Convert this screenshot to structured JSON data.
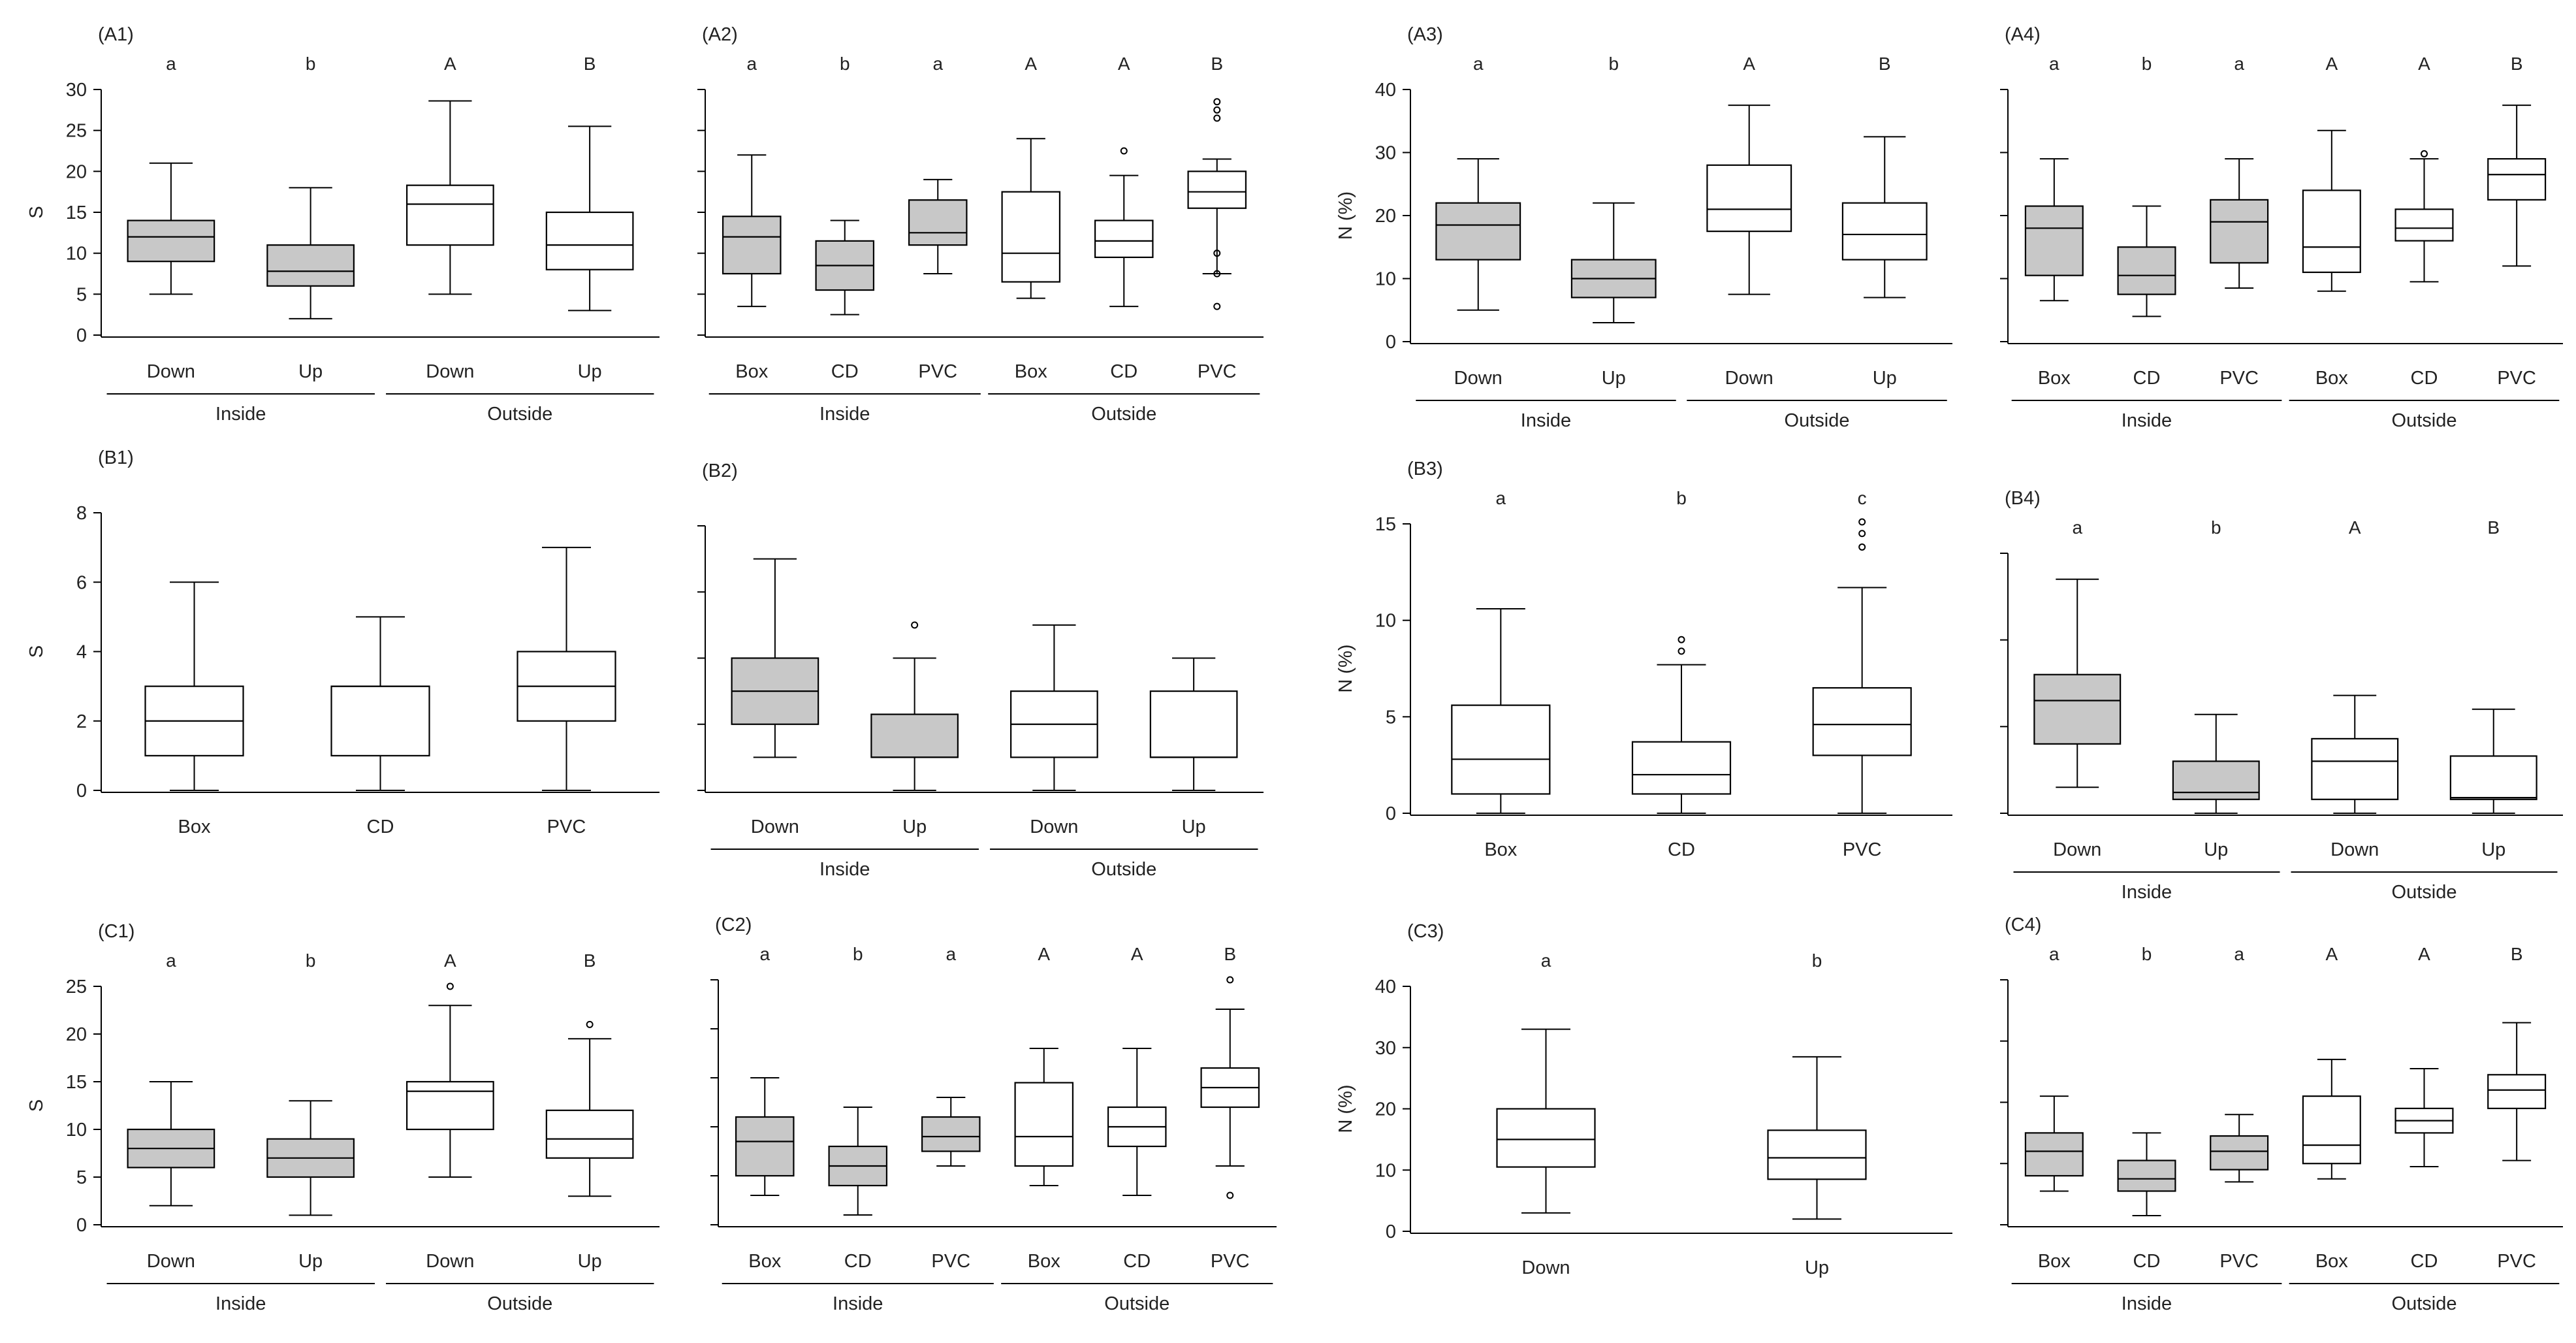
{
  "colors": {
    "inside_fill": "#c8c8c8",
    "outside_fill": "#ffffff",
    "stroke": "#000000"
  },
  "chart_data": [
    {
      "panel": "(A1)",
      "type": "box",
      "ylabel": "S",
      "ylim": [
        0,
        30
      ],
      "yticks": [
        0,
        5,
        10,
        15,
        20,
        25,
        30
      ],
      "categories": [
        "Down",
        "Up",
        "Down",
        "Up"
      ],
      "groups": [
        {
          "label": "Inside",
          "span": [
            0,
            1
          ]
        },
        {
          "label": "Outside",
          "span": [
            2,
            3
          ]
        }
      ],
      "letters": [
        "a",
        "b",
        "A",
        "B"
      ],
      "fills": [
        "inside",
        "inside",
        "outside",
        "outside"
      ],
      "boxes": [
        {
          "min": 5,
          "q1": 9,
          "median": 12,
          "q3": 14,
          "max": 21,
          "outliers": []
        },
        {
          "min": 2,
          "q1": 6,
          "median": 7.8,
          "q3": 11,
          "max": 18,
          "outliers": []
        },
        {
          "min": 5,
          "q1": 11,
          "median": 16,
          "q3": 18.3,
          "max": 28.6,
          "outliers": []
        },
        {
          "min": 3,
          "q1": 8,
          "median": 11,
          "q3": 15,
          "max": 25.5,
          "outliers": []
        }
      ]
    },
    {
      "panel": "(A2)",
      "type": "box",
      "ylabel": "",
      "ylim": [
        0,
        30
      ],
      "yticks": [
        0,
        5,
        10,
        15,
        20,
        25,
        30
      ],
      "show_tick_labels": false,
      "categories": [
        "Box",
        "CD",
        "PVC",
        "Box",
        "CD",
        "PVC"
      ],
      "groups": [
        {
          "label": "Inside",
          "span": [
            0,
            2
          ]
        },
        {
          "label": "Outside",
          "span": [
            3,
            5
          ]
        }
      ],
      "letters": [
        "a",
        "b",
        "a",
        "A",
        "A",
        "B"
      ],
      "fills": [
        "inside",
        "inside",
        "inside",
        "outside",
        "outside",
        "outside"
      ],
      "boxes": [
        {
          "min": 3.5,
          "q1": 7.5,
          "median": 12,
          "q3": 14.5,
          "max": 22,
          "outliers": []
        },
        {
          "min": 2.5,
          "q1": 5.5,
          "median": 8.5,
          "q3": 11.5,
          "max": 14,
          "outliers": []
        },
        {
          "min": 7.5,
          "q1": 11,
          "median": 12.5,
          "q3": 16.5,
          "max": 19,
          "outliers": []
        },
        {
          "min": 4.5,
          "q1": 6.5,
          "median": 10,
          "q3": 17.5,
          "max": 24,
          "outliers": []
        },
        {
          "min": 3.5,
          "q1": 9.5,
          "median": 11.5,
          "q3": 14,
          "max": 19.5,
          "outliers": [
            22.5
          ]
        },
        {
          "min": 7.5,
          "q1": 15.5,
          "median": 17.5,
          "q3": 20,
          "max": 21.5,
          "outliers": [
            10,
            7.5,
            3.5,
            26.5,
            27.5,
            28.5
          ]
        }
      ]
    },
    {
      "panel": "(A3)",
      "type": "box",
      "ylabel": "N (%)",
      "ylim": [
        0,
        40
      ],
      "yticks": [
        0,
        10,
        20,
        30,
        40
      ],
      "categories": [
        "Down",
        "Up",
        "Down",
        "Up"
      ],
      "groups": [
        {
          "label": "Inside",
          "span": [
            0,
            1
          ]
        },
        {
          "label": "Outside",
          "span": [
            2,
            3
          ]
        }
      ],
      "letters": [
        "a",
        "b",
        "A",
        "B"
      ],
      "fills": [
        "inside",
        "inside",
        "outside",
        "outside"
      ],
      "boxes": [
        {
          "min": 5,
          "q1": 13,
          "median": 18.5,
          "q3": 22,
          "max": 29,
          "outliers": []
        },
        {
          "min": 3,
          "q1": 7,
          "median": 10,
          "q3": 13,
          "max": 22,
          "outliers": []
        },
        {
          "min": 7.5,
          "q1": 17.5,
          "median": 21,
          "q3": 28,
          "max": 37.5,
          "outliers": []
        },
        {
          "min": 7,
          "q1": 13,
          "median": 17,
          "q3": 22,
          "max": 32.5,
          "outliers": []
        }
      ]
    },
    {
      "panel": "(A4)",
      "type": "box",
      "ylabel": "",
      "ylim": [
        0,
        40
      ],
      "yticks": [
        0,
        10,
        20,
        30,
        40
      ],
      "show_tick_labels": false,
      "categories": [
        "Box",
        "CD",
        "PVC",
        "Box",
        "CD",
        "PVC"
      ],
      "groups": [
        {
          "label": "Inside",
          "span": [
            0,
            2
          ]
        },
        {
          "label": "Outside",
          "span": [
            3,
            5
          ]
        }
      ],
      "letters": [
        "a",
        "b",
        "a",
        "A",
        "A",
        "B"
      ],
      "fills": [
        "inside",
        "inside",
        "inside",
        "outside",
        "outside",
        "outside"
      ],
      "boxes": [
        {
          "min": 6.5,
          "q1": 10.5,
          "median": 18,
          "q3": 21.5,
          "max": 29,
          "outliers": []
        },
        {
          "min": 4,
          "q1": 7.5,
          "median": 10.5,
          "q3": 15,
          "max": 21.5,
          "outliers": []
        },
        {
          "min": 8.5,
          "q1": 12.5,
          "median": 19,
          "q3": 22.5,
          "max": 29,
          "outliers": []
        },
        {
          "min": 8,
          "q1": 11,
          "median": 15,
          "q3": 24,
          "max": 33.5,
          "outliers": []
        },
        {
          "min": 9.5,
          "q1": 16,
          "median": 18,
          "q3": 21,
          "max": 29,
          "outliers": [
            29.8
          ]
        },
        {
          "min": 12,
          "q1": 22.5,
          "median": 26.5,
          "q3": 29,
          "max": 37.5,
          "outliers": []
        }
      ]
    },
    {
      "panel": "(B1)",
      "type": "box",
      "ylabel": "S",
      "ylim": [
        0,
        8
      ],
      "yticks": [
        0,
        2,
        4,
        6,
        8
      ],
      "categories": [
        "Box",
        "CD",
        "PVC"
      ],
      "groups": [],
      "letters": [
        "",
        "",
        ""
      ],
      "fills": [
        "outside",
        "outside",
        "outside"
      ],
      "boxes": [
        {
          "min": 0,
          "q1": 1,
          "median": 2,
          "q3": 3,
          "max": 6,
          "outliers": []
        },
        {
          "min": 0,
          "q1": 1,
          "median": 3,
          "q3": 3,
          "max": 5,
          "outliers": []
        },
        {
          "min": 0,
          "q1": 2,
          "median": 3,
          "q3": 4,
          "max": 7,
          "outliers": []
        }
      ]
    },
    {
      "panel": "(B2)",
      "type": "box",
      "ylabel": "",
      "ylim": [
        0,
        8
      ],
      "yticks": [
        0,
        2,
        4,
        6,
        8
      ],
      "show_tick_labels": false,
      "categories": [
        "Down",
        "Up",
        "Down",
        "Up"
      ],
      "groups": [
        {
          "label": "Inside",
          "span": [
            0,
            1
          ]
        },
        {
          "label": "Outside",
          "span": [
            2,
            3
          ]
        }
      ],
      "letters": [
        "",
        "",
        "",
        ""
      ],
      "fills": [
        "inside",
        "inside",
        "outside",
        "outside"
      ],
      "boxes": [
        {
          "min": 1,
          "q1": 2,
          "median": 3,
          "q3": 4,
          "max": 7,
          "outliers": []
        },
        {
          "min": 0,
          "q1": 1,
          "median": 1,
          "q3": 2.3,
          "max": 4,
          "outliers": [
            5
          ]
        },
        {
          "min": 0,
          "q1": 1,
          "median": 2,
          "q3": 3,
          "max": 5,
          "outliers": []
        },
        {
          "min": 0,
          "q1": 1,
          "median": 1,
          "q3": 3,
          "max": 4,
          "outliers": []
        }
      ]
    },
    {
      "panel": "(B3)",
      "type": "box",
      "ylabel": "N (%)",
      "ylim": [
        0,
        15
      ],
      "yticks": [
        0,
        5,
        10,
        15
      ],
      "categories": [
        "Box",
        "CD",
        "PVC"
      ],
      "groups": [],
      "letters": [
        "a",
        "b",
        "c"
      ],
      "fills": [
        "outside",
        "outside",
        "outside"
      ],
      "boxes": [
        {
          "min": 0,
          "q1": 1,
          "median": 2.8,
          "q3": 5.6,
          "max": 10.6,
          "outliers": []
        },
        {
          "min": 0,
          "q1": 1,
          "median": 2,
          "q3": 3.7,
          "max": 7.7,
          "outliers": [
            8.4,
            9
          ]
        },
        {
          "min": 0,
          "q1": 3,
          "median": 4.6,
          "q3": 6.5,
          "max": 11.7,
          "outliers": [
            13.8,
            14.5,
            15.1
          ]
        }
      ]
    },
    {
      "panel": "(B4)",
      "type": "box",
      "ylabel": "",
      "ylim": [
        0,
        15
      ],
      "yticks": [
        0,
        5,
        10,
        15
      ],
      "show_tick_labels": false,
      "categories": [
        "Down",
        "Up",
        "Down",
        "Up"
      ],
      "groups": [
        {
          "label": "Inside",
          "span": [
            0,
            1
          ]
        },
        {
          "label": "Outside",
          "span": [
            2,
            3
          ]
        }
      ],
      "letters": [
        "a",
        "b",
        "A",
        "B"
      ],
      "fills": [
        "inside",
        "inside",
        "outside",
        "outside"
      ],
      "boxes": [
        {
          "min": 1.5,
          "q1": 4,
          "median": 6.5,
          "q3": 8,
          "max": 13.5,
          "outliers": []
        },
        {
          "min": 0,
          "q1": 0.8,
          "median": 1.2,
          "q3": 3,
          "max": 5.7,
          "outliers": []
        },
        {
          "min": 0,
          "q1": 0.8,
          "median": 3,
          "q3": 4.3,
          "max": 6.8,
          "outliers": []
        },
        {
          "min": 0,
          "q1": 0.8,
          "median": 0.9,
          "q3": 3.3,
          "max": 6,
          "outliers": []
        }
      ]
    },
    {
      "panel": "(C1)",
      "type": "box",
      "ylabel": "S",
      "ylim": [
        0,
        25
      ],
      "yticks": [
        0,
        5,
        10,
        15,
        20,
        25
      ],
      "categories": [
        "Down",
        "Up",
        "Down",
        "Up"
      ],
      "groups": [
        {
          "label": "Inside",
          "span": [
            0,
            1
          ]
        },
        {
          "label": "Outside",
          "span": [
            2,
            3
          ]
        }
      ],
      "letters": [
        "a",
        "b",
        "A",
        "B"
      ],
      "fills": [
        "inside",
        "inside",
        "outside",
        "outside"
      ],
      "boxes": [
        {
          "min": 2,
          "q1": 6,
          "median": 8,
          "q3": 10,
          "max": 15,
          "outliers": []
        },
        {
          "min": 1,
          "q1": 5,
          "median": 7,
          "q3": 9,
          "max": 13,
          "outliers": []
        },
        {
          "min": 5,
          "q1": 10,
          "median": 14,
          "q3": 15,
          "max": 23,
          "outliers": [
            25
          ]
        },
        {
          "min": 3,
          "q1": 7,
          "median": 9,
          "q3": 12,
          "max": 19.5,
          "outliers": [
            21
          ]
        }
      ]
    },
    {
      "panel": "(C2)",
      "type": "box",
      "ylabel": "",
      "ylim": [
        0,
        25
      ],
      "yticks": [
        0,
        5,
        10,
        15,
        20,
        25
      ],
      "show_tick_labels": false,
      "categories": [
        "Box",
        "CD",
        "PVC",
        "Box",
        "CD",
        "PVC"
      ],
      "groups": [
        {
          "label": "Inside",
          "span": [
            0,
            2
          ]
        },
        {
          "label": "Outside",
          "span": [
            3,
            5
          ]
        }
      ],
      "letters": [
        "a",
        "b",
        "a",
        "A",
        "A",
        "B"
      ],
      "fills": [
        "inside",
        "inside",
        "inside",
        "outside",
        "outside",
        "outside"
      ],
      "boxes": [
        {
          "min": 3,
          "q1": 5,
          "median": 8.5,
          "q3": 11,
          "max": 15,
          "outliers": []
        },
        {
          "min": 1,
          "q1": 4,
          "median": 6,
          "q3": 8,
          "max": 12,
          "outliers": []
        },
        {
          "min": 6,
          "q1": 7.5,
          "median": 9,
          "q3": 11,
          "max": 13,
          "outliers": []
        },
        {
          "min": 4,
          "q1": 6,
          "median": 9,
          "q3": 14.5,
          "max": 18,
          "outliers": []
        },
        {
          "min": 3,
          "q1": 8,
          "median": 10,
          "q3": 12,
          "max": 18,
          "outliers": []
        },
        {
          "min": 6,
          "q1": 12,
          "median": 14,
          "q3": 16,
          "max": 22,
          "outliers": [
            3,
            25
          ]
        }
      ]
    },
    {
      "panel": "(C3)",
      "type": "box",
      "ylabel": "N (%)",
      "ylim": [
        0,
        40
      ],
      "yticks": [
        0,
        10,
        20,
        30,
        40
      ],
      "categories": [
        "Down",
        "Up"
      ],
      "groups": [],
      "letters": [
        "a",
        "b"
      ],
      "fills": [
        "outside",
        "outside"
      ],
      "boxes": [
        {
          "min": 3,
          "q1": 10.5,
          "median": 15,
          "q3": 20,
          "max": 33,
          "outliers": []
        },
        {
          "min": 2,
          "q1": 8.5,
          "median": 12,
          "q3": 16.5,
          "max": 28.5,
          "outliers": []
        }
      ]
    },
    {
      "panel": "(C4)",
      "type": "box",
      "ylabel": "",
      "ylim": [
        0,
        40
      ],
      "yticks": [
        0,
        10,
        20,
        30,
        40
      ],
      "show_tick_labels": false,
      "categories": [
        "Box",
        "CD",
        "PVC",
        "Box",
        "CD",
        "PVC"
      ],
      "groups": [
        {
          "label": "Inside",
          "span": [
            0,
            2
          ]
        },
        {
          "label": "Outside",
          "span": [
            3,
            5
          ]
        }
      ],
      "letters": [
        "a",
        "b",
        "a",
        "A",
        "A",
        "B"
      ],
      "fills": [
        "inside",
        "inside",
        "inside",
        "outside",
        "outside",
        "outside"
      ],
      "boxes": [
        {
          "min": 5.5,
          "q1": 8,
          "median": 12,
          "q3": 15,
          "max": 21,
          "outliers": []
        },
        {
          "min": 1.5,
          "q1": 5.5,
          "median": 7.5,
          "q3": 10.5,
          "max": 15,
          "outliers": []
        },
        {
          "min": 7,
          "q1": 9,
          "median": 12,
          "q3": 14.5,
          "max": 18,
          "outliers": []
        },
        {
          "min": 7.5,
          "q1": 10,
          "median": 13,
          "q3": 21,
          "max": 27,
          "outliers": []
        },
        {
          "min": 9.5,
          "q1": 15,
          "median": 17,
          "q3": 19,
          "max": 25.5,
          "outliers": []
        },
        {
          "min": 10.5,
          "q1": 19,
          "median": 22,
          "q3": 24.5,
          "max": 33,
          "outliers": []
        }
      ]
    }
  ]
}
